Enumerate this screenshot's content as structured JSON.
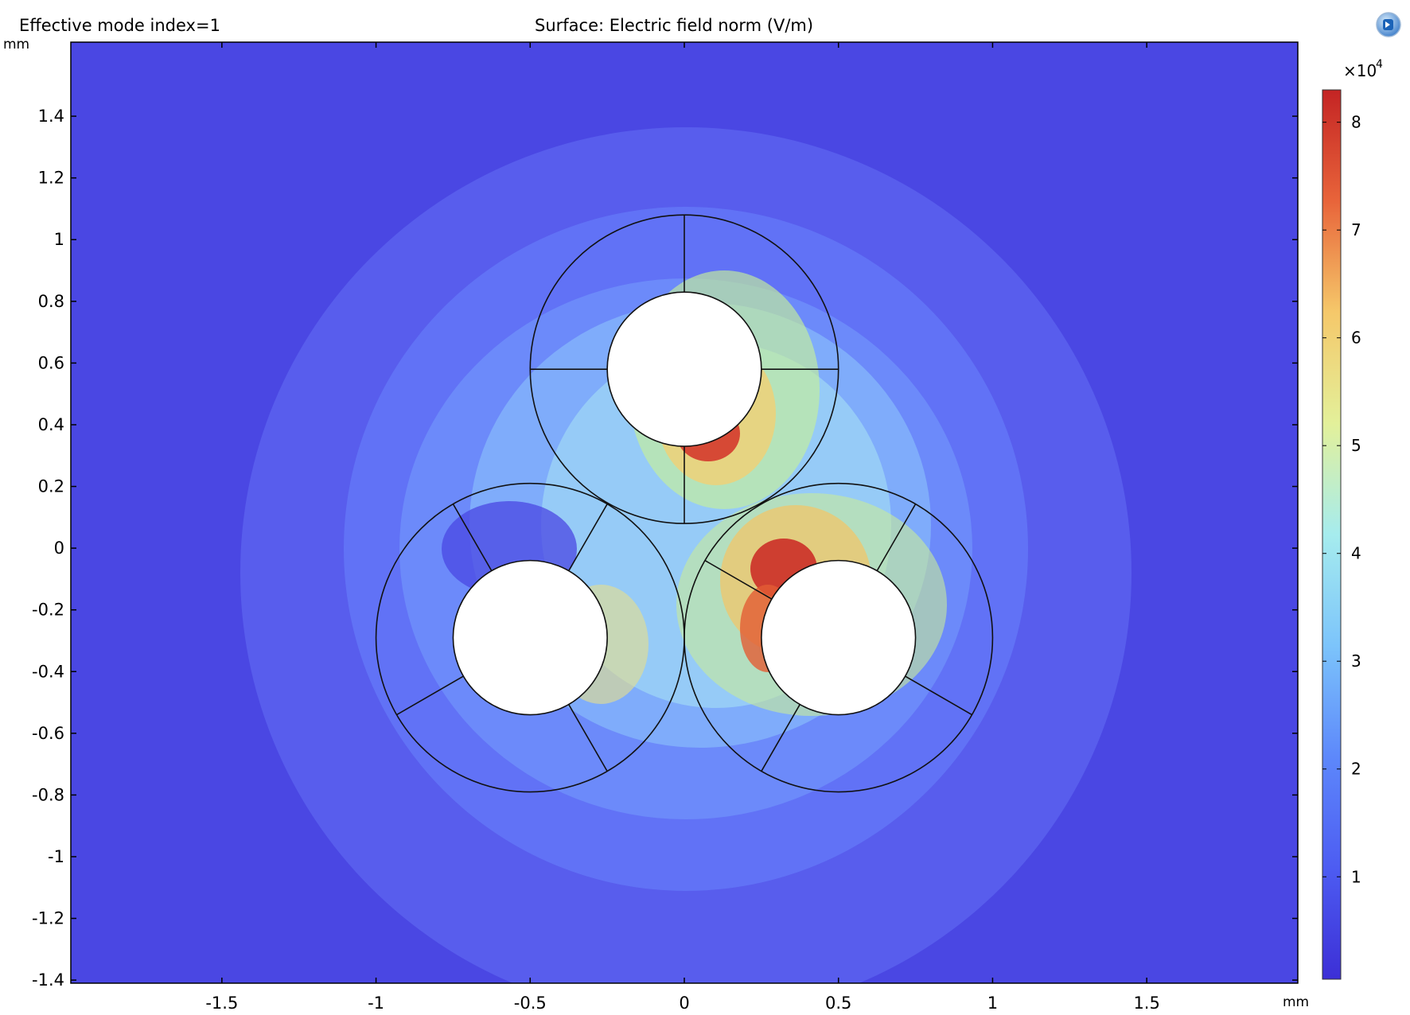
{
  "header": {
    "left_title": "Effective mode index=1",
    "center_title": "Surface: Electric field norm (V/m)"
  },
  "units": {
    "x": "mm",
    "y": "mm"
  },
  "colorbar": {
    "multiplier": "×10",
    "exponent": "4",
    "range": [
      0.05,
      8.3
    ],
    "ticks": [
      "1",
      "2",
      "3",
      "4",
      "5",
      "6",
      "7",
      "8"
    ],
    "colors": [
      "#3c2fd6",
      "#4d5cf2",
      "#5d88fb",
      "#7cc4fb",
      "#a6ecee",
      "#e3f09a",
      "#f5c86a",
      "#e8643a",
      "#c42424"
    ]
  },
  "chart_data": {
    "type": "heatmap",
    "title": "Surface: Electric field norm (V/m)",
    "subtitle": "Effective mode index=1",
    "xlabel": "mm",
    "ylabel": "mm",
    "xlim": [
      -1.99,
      1.99
    ],
    "ylim": [
      -1.41,
      1.64
    ],
    "x_ticks": [
      "-1.5",
      "-1",
      "-0.5",
      "0",
      "0.5",
      "1",
      "1.5"
    ],
    "y_ticks": [
      "1.4",
      "1.2",
      "1",
      "0.8",
      "0.6",
      "0.4",
      "0.2",
      "0",
      "-0.2",
      "-0.4",
      "-0.6",
      "-0.8",
      "-1",
      "-1.2",
      "-1.4"
    ],
    "grid": false,
    "colorbar_range": [
      500,
      83000
    ],
    "conductors": [
      {
        "cx": 0.0,
        "cy": 0.58,
        "r_inner": 0.25,
        "r_outer": 0.5
      },
      {
        "cx": -0.5,
        "cy": -0.29,
        "r_inner": 0.25,
        "r_outer": 0.5
      },
      {
        "cx": 0.5,
        "cy": -0.29,
        "r_inner": 0.25,
        "r_outer": 0.5
      }
    ],
    "field_hotspots": [
      {
        "x": 0.07,
        "y": 0.32,
        "value": 82000
      },
      {
        "x": 0.33,
        "y": -0.06,
        "value": 80000
      },
      {
        "x": 0.27,
        "y": -0.32,
        "value": 72000
      },
      {
        "x": -0.23,
        "y": -0.3,
        "value": 45000
      }
    ]
  }
}
